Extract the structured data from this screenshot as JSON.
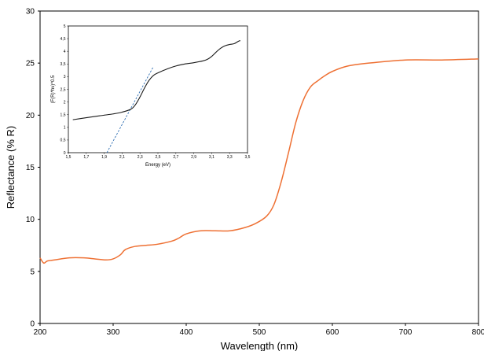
{
  "chart_data": [
    {
      "type": "line",
      "title": "",
      "xlabel": "Wavelength (nm)",
      "ylabel": "Reflectance (% R)",
      "xlim": [
        200,
        800
      ],
      "ylim": [
        0,
        30
      ],
      "xticks": [
        "200",
        "300",
        "400",
        "500",
        "600",
        "700",
        "800"
      ],
      "yticks": [
        "0",
        "5",
        "10",
        "15",
        "20",
        "25",
        "30"
      ],
      "grid": false,
      "legend": "none",
      "series": [
        {
          "color": "#ee7033",
          "x": [
            200,
            205,
            210,
            220,
            240,
            260,
            275,
            290,
            300,
            310,
            315,
            320,
            330,
            345,
            360,
            380,
            390,
            400,
            420,
            440,
            460,
            480,
            495,
            510,
            520,
            530,
            540,
            550,
            560,
            570,
            580,
            590,
            600,
            620,
            650,
            700,
            750,
            800
          ],
          "y": [
            6.3,
            5.8,
            6.0,
            6.1,
            6.3,
            6.3,
            6.2,
            6.1,
            6.2,
            6.6,
            7.0,
            7.2,
            7.4,
            7.5,
            7.6,
            7.9,
            8.2,
            8.6,
            8.9,
            8.9,
            8.9,
            9.2,
            9.6,
            10.3,
            11.4,
            13.6,
            16.4,
            19.3,
            21.4,
            22.7,
            23.3,
            23.8,
            24.2,
            24.7,
            25.0,
            25.3,
            25.3,
            25.4
          ]
        }
      ]
    },
    {
      "type": "line",
      "title": "",
      "xlabel": "Energy (eV)",
      "ylabel": "(F(R)*hν)^0.5",
      "xlim": [
        1.5,
        3.5
      ],
      "ylim": [
        0,
        5
      ],
      "xticks": [
        "1,5",
        "1,7",
        "1,9",
        "2,1",
        "2,3",
        "2,5",
        "2,7",
        "2,9",
        "3,1",
        "3,3",
        "3,5"
      ],
      "yticks": [
        "0",
        "0,5",
        "1",
        "1,5",
        "2",
        "2,5",
        "3",
        "3,5",
        "4",
        "4,5",
        "5"
      ],
      "grid": false,
      "legend": "none",
      "series": [
        {
          "color": "#1a1a1a",
          "x": [
            1.55,
            1.7,
            1.8,
            1.9,
            2.0,
            2.1,
            2.2,
            2.25,
            2.3,
            2.35,
            2.4,
            2.45,
            2.5,
            2.6,
            2.7,
            2.8,
            2.9,
            3.0,
            3.05,
            3.1,
            3.15,
            3.2,
            3.25,
            3.3,
            3.35,
            3.4,
            3.42
          ],
          "y": [
            1.3,
            1.38,
            1.43,
            1.48,
            1.53,
            1.6,
            1.72,
            1.9,
            2.2,
            2.55,
            2.85,
            3.05,
            3.15,
            3.3,
            3.42,
            3.5,
            3.55,
            3.62,
            3.68,
            3.8,
            3.97,
            4.12,
            4.22,
            4.27,
            4.3,
            4.4,
            4.42
          ]
        }
      ],
      "annotations": [
        {
          "type": "tangent-line",
          "style": "dashed",
          "color": "#2f6fb3",
          "x": [
            1.93,
            2.45
          ],
          "y": [
            0,
            3.4
          ]
        }
      ]
    }
  ]
}
